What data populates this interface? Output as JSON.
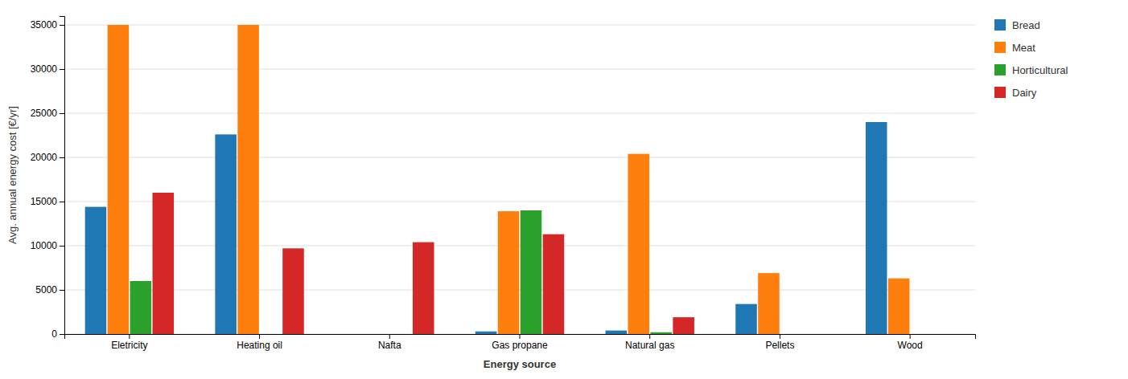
{
  "chart_data": {
    "type": "bar",
    "categories": [
      "Eletricity",
      "Heating oil",
      "Nafta",
      "Gas propane",
      "Natural gas",
      "Pellets",
      "Wood"
    ],
    "series": [
      {
        "name": "Bread",
        "values": [
          14400,
          22600,
          0,
          300,
          400,
          3400,
          24000
        ]
      },
      {
        "name": "Meat",
        "values": [
          35000,
          35000,
          0,
          13900,
          20400,
          6900,
          6300
        ]
      },
      {
        "name": "Horticultural",
        "values": [
          6000,
          0,
          0,
          14000,
          200,
          0,
          0
        ]
      },
      {
        "name": "Dairy",
        "values": [
          16000,
          9700,
          10400,
          11300,
          1900,
          0,
          0
        ]
      }
    ],
    "xlabel": "Energy source",
    "ylabel": "Avg. annual energy cost [€/yr]",
    "ylim": [
      0,
      36000
    ],
    "yticks": [
      0,
      5000,
      10000,
      15000,
      20000,
      25000,
      30000,
      35000
    ],
    "grid": true,
    "legend": "right"
  }
}
